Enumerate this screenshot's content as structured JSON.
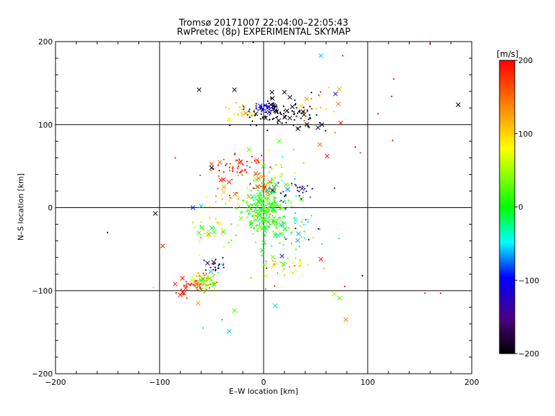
{
  "chart_data": {
    "type": "scatter",
    "title": "Tromsø 20171007 22:04:00–22:05:43",
    "subtitle": "RwPretec (8p) EXPERIMENTAL SKYMAP",
    "xlabel": "E–W location [km]",
    "ylabel": "N–S location [km]",
    "xlim": [
      -200,
      200
    ],
    "ylim": [
      -200,
      200
    ],
    "xticks": [
      "−200",
      "−100",
      "0",
      "100",
      "200"
    ],
    "yticks": [
      "−200",
      "−100",
      "0",
      "100",
      "200"
    ],
    "grid": true,
    "colorbar": {
      "unit": "[m/s]",
      "range": [
        -200,
        200
      ],
      "ticks": [
        "200",
        "100",
        "0",
        "−100",
        "−200"
      ],
      "colormap": [
        "#000000",
        "#4b0082",
        "#0000ff",
        "#00ffff",
        "#00ff00",
        "#ffff00",
        "#ff8000",
        "#ff0000"
      ]
    },
    "clusters": [
      {
        "cx": 22,
        "cy": 112,
        "sx": 18,
        "sy": 9,
        "n": 110,
        "v": -195,
        "vs": 8
      },
      {
        "cx": 1,
        "cy": 119,
        "sx": 6,
        "sy": 3,
        "n": 40,
        "v": -110,
        "vs": 15
      },
      {
        "cx": -22,
        "cy": 118,
        "sx": 8,
        "sy": 5,
        "n": 22,
        "v": 110,
        "vs": 40
      },
      {
        "cx": 55,
        "cy": 120,
        "sx": 10,
        "sy": 12,
        "n": 18,
        "v": 140,
        "vs": 60
      },
      {
        "cx": -25,
        "cy": 47,
        "sx": 12,
        "sy": 9,
        "n": 60,
        "v": 185,
        "vs": 15
      },
      {
        "cx": 4,
        "cy": 40,
        "sx": 12,
        "sy": 12,
        "n": 45,
        "v": 40,
        "vs": 40
      },
      {
        "cx": 0,
        "cy": 24,
        "sx": 4,
        "sy": 4,
        "n": 25,
        "v": 180,
        "vs": 20
      },
      {
        "cx": 1,
        "cy": -2,
        "sx": 10,
        "sy": 14,
        "n": 260,
        "v": 10,
        "vs": 18
      },
      {
        "cx": 25,
        "cy": -30,
        "sx": 16,
        "sy": 14,
        "n": 70,
        "v": -10,
        "vs": 40
      },
      {
        "cx": 30,
        "cy": 20,
        "sx": 12,
        "sy": 7,
        "n": 30,
        "v": -120,
        "vs": 50
      },
      {
        "cx": -35,
        "cy": 15,
        "sx": 10,
        "sy": 8,
        "n": 25,
        "v": 120,
        "vs": 50
      },
      {
        "cx": -45,
        "cy": -25,
        "sx": 12,
        "sy": 12,
        "n": 35,
        "v": 70,
        "vs": 60
      },
      {
        "cx": -45,
        "cy": -70,
        "sx": 5,
        "sy": 5,
        "n": 25,
        "v": -150,
        "vs": 45
      },
      {
        "cx": -58,
        "cy": -88,
        "sx": 7,
        "sy": 6,
        "n": 70,
        "v": 110,
        "vs": 45
      },
      {
        "cx": -72,
        "cy": -96,
        "sx": 6,
        "sy": 5,
        "n": 25,
        "v": 190,
        "vs": 10
      },
      {
        "cx": -55,
        "cy": -90,
        "sx": 5,
        "sy": 4,
        "n": 25,
        "v": 30,
        "vs": 20
      },
      {
        "cx": 20,
        "cy": -70,
        "sx": 14,
        "sy": 10,
        "n": 35,
        "v": 80,
        "vs": 50
      }
    ],
    "outliers": [
      {
        "x": -62,
        "y": 142,
        "v": -200,
        "m": "x"
      },
      {
        "x": -28,
        "y": 142,
        "v": -200,
        "m": "x"
      },
      {
        "x": 8,
        "y": 139,
        "v": -200,
        "m": "x"
      },
      {
        "x": 20,
        "y": 139,
        "v": -200,
        "m": "x"
      },
      {
        "x": 55,
        "y": 183,
        "v": -60,
        "m": "x"
      },
      {
        "x": 69,
        "y": 137,
        "v": -130,
        "m": "x"
      },
      {
        "x": 76,
        "y": 183,
        "v": 190,
        "m": "."
      },
      {
        "x": 160,
        "y": 197,
        "v": 195,
        "m": "."
      },
      {
        "x": -10,
        "y": 199,
        "v": -110,
        "m": "."
      },
      {
        "x": 187,
        "y": 124,
        "v": -200,
        "m": "x"
      },
      {
        "x": 125,
        "y": 155,
        "v": 195,
        "m": "."
      },
      {
        "x": 123,
        "y": 134,
        "v": 195,
        "m": "."
      },
      {
        "x": 110,
        "y": 113,
        "v": 195,
        "m": "."
      },
      {
        "x": 124,
        "y": 81,
        "v": 195,
        "m": "."
      },
      {
        "x": 88,
        "y": 73,
        "v": 195,
        "m": "."
      },
      {
        "x": 93,
        "y": 66,
        "v": 180,
        "m": "."
      },
      {
        "x": 74,
        "y": 102,
        "v": 195,
        "m": "x"
      },
      {
        "x": 56,
        "y": 100,
        "v": -200,
        "m": "x"
      },
      {
        "x": 61,
        "y": 62,
        "v": 195,
        "m": "x"
      },
      {
        "x": 54,
        "y": 76,
        "v": 150,
        "m": "x"
      },
      {
        "x": -104,
        "y": -7,
        "v": -200,
        "m": "x"
      },
      {
        "x": -150,
        "y": -30,
        "v": -200,
        "m": "."
      },
      {
        "x": -97,
        "y": -46,
        "v": 190,
        "m": "x"
      },
      {
        "x": -106,
        "y": -96,
        "v": 100,
        "m": "."
      },
      {
        "x": -60,
        "y": 2,
        "v": -60,
        "m": "x"
      },
      {
        "x": -68,
        "y": 0,
        "v": -90,
        "m": "x"
      },
      {
        "x": 95,
        "y": -82,
        "v": -200,
        "m": "."
      },
      {
        "x": 78,
        "y": -95,
        "v": 195,
        "m": "."
      },
      {
        "x": 155,
        "y": -103,
        "v": 195,
        "m": "."
      },
      {
        "x": 170,
        "y": -103,
        "v": 195,
        "m": "."
      },
      {
        "x": 73,
        "y": -109,
        "v": 20,
        "m": "x"
      },
      {
        "x": 68,
        "y": -104,
        "v": 50,
        "m": "x"
      },
      {
        "x": 79,
        "y": -135,
        "v": 140,
        "m": "x"
      },
      {
        "x": 11,
        "y": -118,
        "v": -60,
        "m": "x"
      },
      {
        "x": -28,
        "y": -124,
        "v": 20,
        "m": "x"
      },
      {
        "x": -33,
        "y": -149,
        "v": -60,
        "m": "x"
      },
      {
        "x": -40,
        "y": -135,
        "v": -60,
        "m": "."
      },
      {
        "x": -58,
        "y": -145,
        "v": -10,
        "m": "."
      },
      {
        "x": 2,
        "y": -98,
        "v": -60,
        "m": "."
      },
      {
        "x": 55,
        "y": -62,
        "v": 195,
        "m": "x"
      },
      {
        "x": -80,
        "y": -105,
        "v": 190,
        "m": "x"
      },
      {
        "x": -63,
        "y": -115,
        "v": 130,
        "m": "x"
      },
      {
        "x": -85,
        "y": -92,
        "v": 190,
        "m": "x"
      },
      {
        "x": -78,
        "y": -85,
        "v": 190,
        "m": "x"
      },
      {
        "x": 15,
        "y": 80,
        "v": 20,
        "m": "x"
      },
      {
        "x": 29,
        "y": 70,
        "v": 20,
        "m": "."
      },
      {
        "x": -14,
        "y": 70,
        "v": 20,
        "m": "x"
      },
      {
        "x": 33,
        "y": 95,
        "v": -200,
        "m": "x"
      },
      {
        "x": -50,
        "y": 48,
        "v": -200,
        "m": "x"
      },
      {
        "x": -85,
        "y": 60,
        "v": 190,
        "m": "."
      }
    ]
  }
}
